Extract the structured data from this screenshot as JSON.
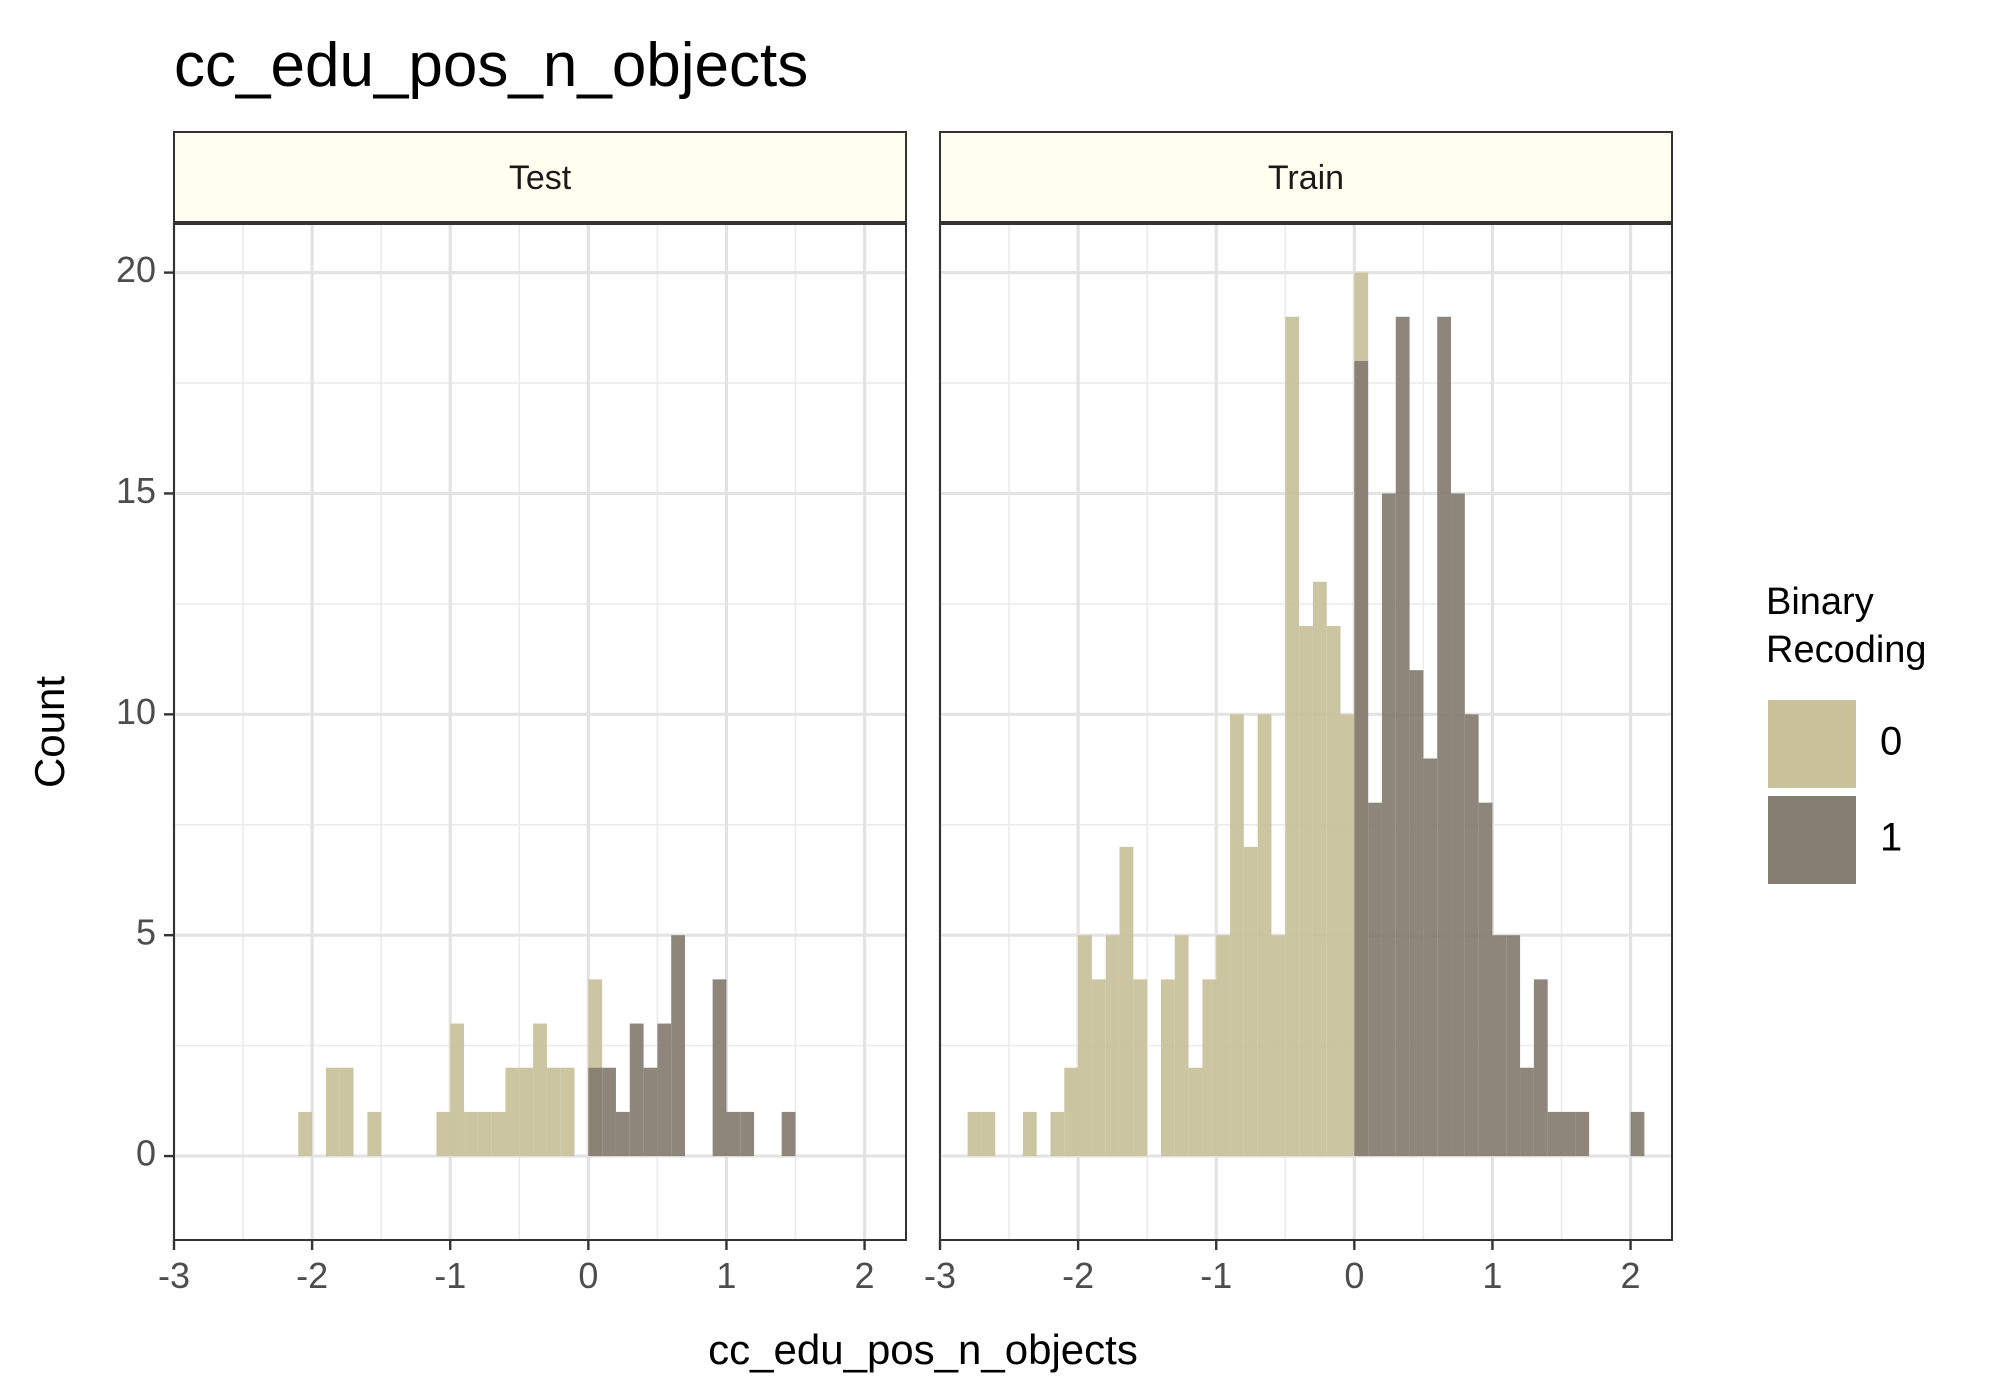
{
  "chart_data": {
    "type": "histogram",
    "title": "cc_edu_pos_n_objects",
    "xlabel": "cc_edu_pos_n_objects",
    "ylabel": "Count",
    "xlim": [
      -3,
      2.3
    ],
    "ylim": [
      -1.9,
      21.1
    ],
    "x_ticks": [
      -3,
      -2,
      -1,
      0,
      1,
      2
    ],
    "x_tick_labels": [
      "-3",
      "-2",
      "-1",
      "0",
      "1",
      "2"
    ],
    "y_ticks": [
      0,
      5,
      10,
      15,
      20
    ],
    "y_tick_labels": [
      "0",
      "5",
      "10",
      "15",
      "20"
    ],
    "bin_width": 0.1,
    "grid": true,
    "legend": {
      "title_lines": [
        "Binary",
        "Recoding"
      ],
      "placement": "right",
      "items": [
        {
          "label": "0",
          "color": "#C8C19A"
        },
        {
          "label": "1",
          "color": "#857D71"
        }
      ]
    },
    "colors": {
      "0": "#C8C19A",
      "1": "#857D71"
    },
    "panels": [
      {
        "name": "Test",
        "series": [
          {
            "name": "0",
            "bins": [
              [
                -2.05,
                1
              ],
              [
                -1.85,
                2
              ],
              [
                -1.75,
                2
              ],
              [
                -1.55,
                1
              ],
              [
                -1.05,
                1
              ],
              [
                -0.95,
                3
              ],
              [
                -0.85,
                1
              ],
              [
                -0.75,
                1
              ],
              [
                -0.65,
                1
              ],
              [
                -0.55,
                2
              ],
              [
                -0.45,
                2
              ],
              [
                -0.35,
                3
              ],
              [
                -0.25,
                2
              ],
              [
                -0.15,
                2
              ],
              [
                0.05,
                4
              ]
            ]
          },
          {
            "name": "1",
            "bins": [
              [
                0.05,
                2
              ],
              [
                0.15,
                2
              ],
              [
                0.25,
                1
              ],
              [
                0.35,
                3
              ],
              [
                0.45,
                2
              ],
              [
                0.55,
                3
              ],
              [
                0.65,
                5
              ],
              [
                0.95,
                4
              ],
              [
                1.05,
                1
              ],
              [
                1.15,
                1
              ],
              [
                1.45,
                1
              ]
            ]
          }
        ]
      },
      {
        "name": "Train",
        "series": [
          {
            "name": "0",
            "bins": [
              [
                -2.75,
                1
              ],
              [
                -2.65,
                1
              ],
              [
                -2.35,
                1
              ],
              [
                -2.15,
                1
              ],
              [
                -2.05,
                2
              ],
              [
                -1.95,
                5
              ],
              [
                -1.85,
                4
              ],
              [
                -1.75,
                5
              ],
              [
                -1.65,
                7
              ],
              [
                -1.55,
                4
              ],
              [
                -1.35,
                4
              ],
              [
                -1.25,
                5
              ],
              [
                -1.15,
                2
              ],
              [
                -1.05,
                4
              ],
              [
                -0.95,
                5
              ],
              [
                -0.85,
                10
              ],
              [
                -0.75,
                7
              ],
              [
                -0.65,
                10
              ],
              [
                -0.55,
                5
              ],
              [
                -0.45,
                19
              ],
              [
                -0.35,
                12
              ],
              [
                -0.25,
                13
              ],
              [
                -0.15,
                12
              ],
              [
                -0.05,
                10
              ],
              [
                0.05,
                20
              ]
            ]
          },
          {
            "name": "1",
            "bins": [
              [
                0.05,
                18
              ],
              [
                0.15,
                8
              ],
              [
                0.25,
                15
              ],
              [
                0.35,
                19
              ],
              [
                0.45,
                11
              ],
              [
                0.55,
                9
              ],
              [
                0.65,
                19
              ],
              [
                0.75,
                15
              ],
              [
                0.85,
                10
              ],
              [
                0.95,
                8
              ],
              [
                1.05,
                5
              ],
              [
                1.15,
                5
              ],
              [
                1.25,
                2
              ],
              [
                1.35,
                4
              ],
              [
                1.45,
                1
              ],
              [
                1.55,
                1
              ],
              [
                1.65,
                1
              ],
              [
                2.05,
                1
              ]
            ]
          }
        ]
      }
    ]
  }
}
